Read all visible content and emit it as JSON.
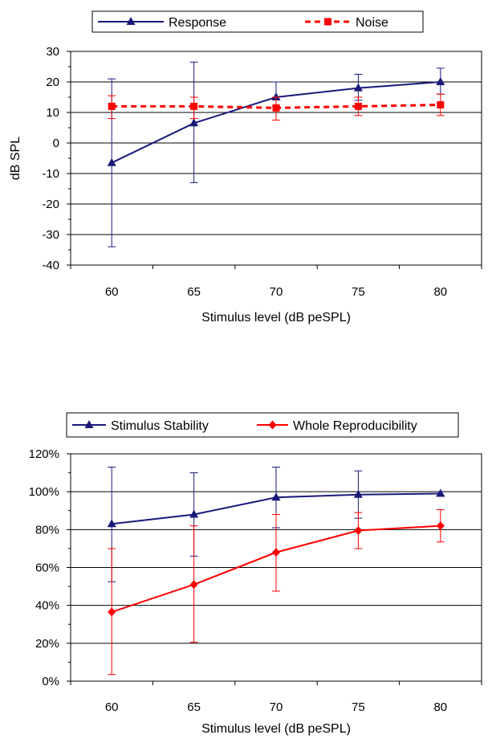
{
  "chart_data": [
    {
      "type": "line",
      "title": "",
      "xlabel": "Stimulus level (dB peSPL)",
      "ylabel": "dB SPL",
      "x": [
        60,
        65,
        70,
        75,
        80
      ],
      "x_ticks": [
        "60",
        "65",
        "70",
        "75",
        "80"
      ],
      "ylim": [
        -40,
        30
      ],
      "y_ticks": [
        -40,
        -30,
        -20,
        -10,
        0,
        10,
        20,
        30
      ],
      "y_tick_labels": [
        "-40",
        "-30",
        "-20",
        "-10",
        "0",
        "10",
        "20",
        "30"
      ],
      "grid": "horizontal",
      "legend_position": "top",
      "series": [
        {
          "name": "Response",
          "color": "#1a1a7a",
          "marker": "triangle",
          "line_style": "solid",
          "values": [
            -6.5,
            6.5,
            15,
            18,
            20
          ],
          "error_low": [
            -34,
            -13,
            12,
            14,
            16
          ],
          "error_high": [
            21,
            26.5,
            20,
            22.5,
            24.5
          ]
        },
        {
          "name": "Noise",
          "color": "#ff0000",
          "marker": "square",
          "line_style": "dashed",
          "values": [
            12,
            12,
            11.5,
            12,
            12.5
          ],
          "error_low": [
            8,
            8,
            7.5,
            9,
            9
          ],
          "error_high": [
            15.5,
            15,
            15,
            15,
            16
          ]
        }
      ]
    },
    {
      "type": "line",
      "title": "",
      "xlabel": "Stimulus level (dB peSPL)",
      "ylabel": "",
      "x": [
        60,
        65,
        70,
        75,
        80
      ],
      "x_ticks": [
        "60",
        "65",
        "70",
        "75",
        "80"
      ],
      "ylim": [
        0,
        120
      ],
      "y_ticks": [
        0,
        20,
        40,
        60,
        80,
        100,
        120
      ],
      "y_tick_labels": [
        "0%",
        "20%",
        "40%",
        "60%",
        "80%",
        "100%",
        "120%"
      ],
      "grid": "horizontal",
      "legend_position": "top",
      "series": [
        {
          "name": "Stimulus Stability",
          "color": "#1a1a7a",
          "marker": "triangle",
          "line_style": "solid",
          "values": [
            83,
            88,
            97,
            98.5,
            99
          ],
          "error_low": [
            52.5,
            66,
            81,
            86,
            98
          ],
          "error_high": [
            113,
            110,
            113,
            111,
            100
          ]
        },
        {
          "name": "Whole Reproducibility",
          "color": "#ff0000",
          "marker": "diamond",
          "line_style": "solid",
          "values": [
            36.5,
            51,
            68,
            79.5,
            82
          ],
          "error_low": [
            3.5,
            20.5,
            47.5,
            70,
            73.5
          ],
          "error_high": [
            70,
            82,
            88,
            89,
            90.5
          ]
        }
      ]
    }
  ]
}
